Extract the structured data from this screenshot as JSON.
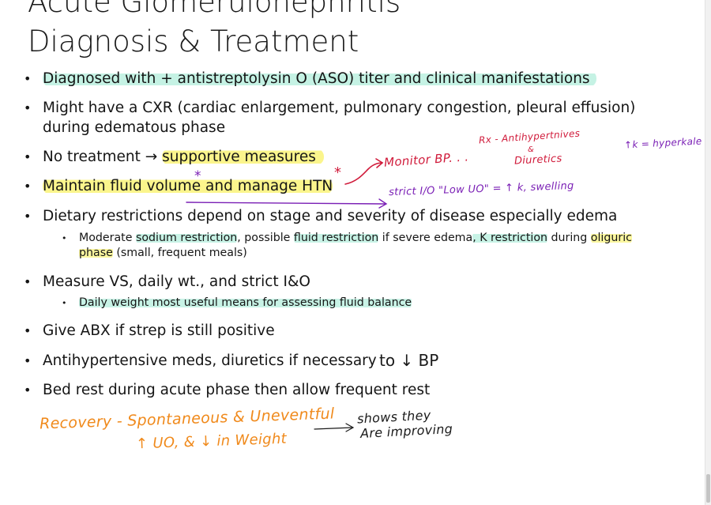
{
  "title": {
    "line1": "Acute Glomerulonephritis",
    "line2": "Diagnosis & Treatment"
  },
  "bullets": {
    "b1": "Diagnosed with + antistreptolysin O (ASO) titer and clinical manifestations",
    "b2_line1": "Might have a CXR (cardiac enlargement, pulmonary congestion, pleural effusion)",
    "b2_line2": "during edematous phase",
    "b3_prefix": "No treatment",
    "b3_arrow": "→",
    "b3_highlight": "supportive measures",
    "b4": "Maintain fluid volume and manage HTN",
    "b5": "Dietary restrictions depend on stage and severity of disease especially edema",
    "b5_sub": {
      "t1": "Moderate ",
      "t2": "sodium restriction",
      "t3": ", possible ",
      "t4": "fluid restriction",
      "t5": " if severe edema",
      "t6": ", K restriction",
      "t7": " during ",
      "t8": "oliguric",
      "t9": "phase",
      "t10": " (small, frequent meals)"
    },
    "b6": "Measure VS, daily wt., and strict I&O",
    "b6_sub": "Daily weight most useful means for assessing fluid balance",
    "b7": "Give ABX if strep is still positive",
    "b8": "Antihypertensive meds, diuretics if necessary",
    "b9": "Bed rest during acute phase then allow frequent rest"
  },
  "handwritten": {
    "monitor_bp": "Monitor BP. . .",
    "rx_line1": "Rx - Antihypertnives",
    "rx_amp": "&",
    "rx_line2": "Diuretics",
    "k_note": "↑k = hyperkale",
    "strict_io": "strict I/O \"Low UO\" = ↑ k, swelling",
    "to_bp": "to ↓ BP",
    "recovery_line1": "Recovery - Spontaneous & Uneventful",
    "recovery_line2": "↑ UO, & ↓ in Weight",
    "shows_line1": "shows they",
    "shows_line2": "Are improving",
    "star1": "*",
    "star2": "*"
  },
  "colors": {
    "highlight_yellow": "#fbf7a0",
    "highlight_green": "#c8f3e6",
    "ink_red": "#d01a3a",
    "ink_purple": "#7a1fb5",
    "ink_orange": "#f08a1c"
  }
}
